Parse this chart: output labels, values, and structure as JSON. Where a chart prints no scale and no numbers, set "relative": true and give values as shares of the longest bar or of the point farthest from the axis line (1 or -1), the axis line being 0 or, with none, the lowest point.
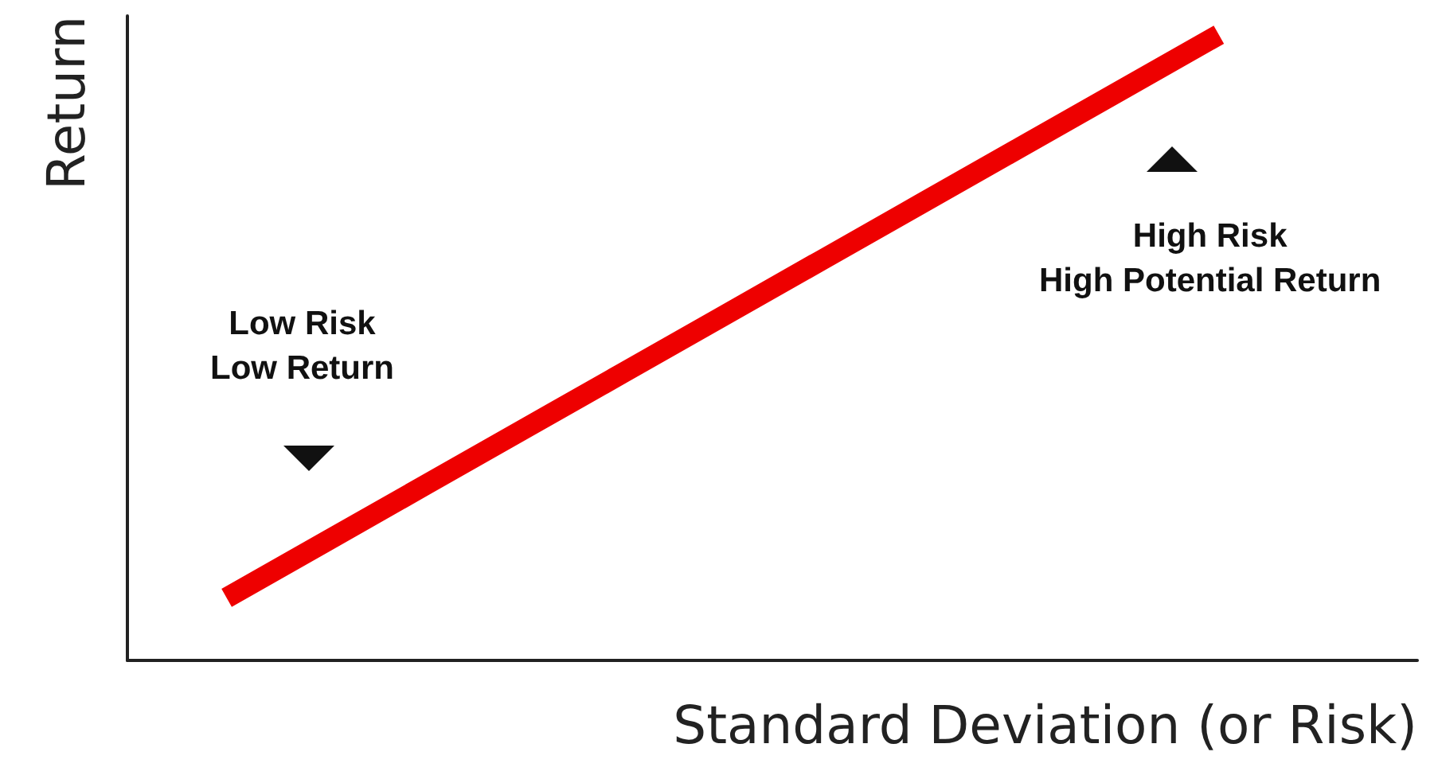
{
  "chart_data": {
    "type": "line",
    "relative": true,
    "xlabel": "Standard Deviation (or Risk)",
    "ylabel": "Return",
    "categories": [
      null,
      null,
      null,
      null,
      null,
      null,
      null,
      null,
      null,
      null,
      null,
      null,
      null,
      null
    ],
    "series": [
      {
        "color": "#ee0000",
        "values": [
          null,
          0.1,
          0.19,
          0.28,
          0.37,
          0.46,
          0.55,
          0.64,
          0.73,
          0.82,
          0.91,
          1,
          null,
          null
        ]
      }
    ],
    "marker": "none",
    "line_style": "solid",
    "grid": false,
    "annotations": [
      "Low Risk\nLow Return",
      "High Risk\nHigh Potential Return"
    ]
  }
}
